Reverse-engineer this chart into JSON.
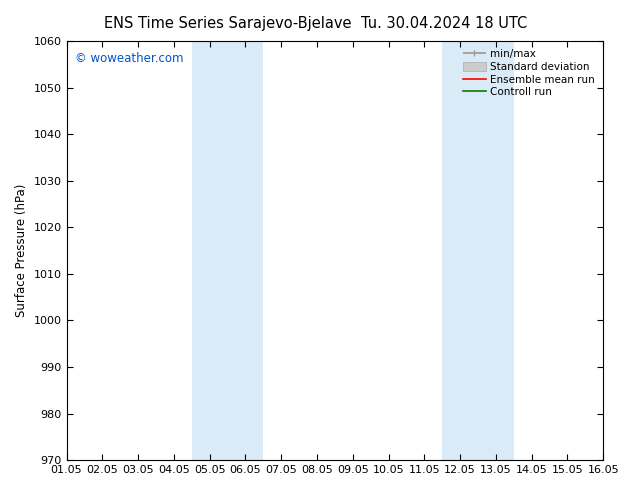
{
  "title": "ENS Time Series Sarajevo-Bjelave",
  "title2": "Tu. 30.04.2024 18 UTC",
  "ylabel": "Surface Pressure (hPa)",
  "ylim": [
    970,
    1060
  ],
  "yticks": [
    970,
    980,
    990,
    1000,
    1010,
    1020,
    1030,
    1040,
    1050,
    1060
  ],
  "xtick_labels": [
    "01.05",
    "02.05",
    "03.05",
    "04.05",
    "05.05",
    "06.05",
    "07.05",
    "08.05",
    "09.05",
    "10.05",
    "11.05",
    "12.05",
    "13.05",
    "14.05",
    "15.05",
    "16.05"
  ],
  "shaded_bands": [
    {
      "xstart": 3.5,
      "xend": 5.5
    },
    {
      "xstart": 10.5,
      "xend": 12.5
    }
  ],
  "shaded_color": "#daeaf7",
  "watermark": "© woweather.com",
  "watermark_color": "#0055cc",
  "background_color": "#ffffff",
  "legend_entries": [
    {
      "label": "min/max",
      "color": "#999999",
      "lw": 1.2
    },
    {
      "label": "Standard deviation",
      "color": "#cccccc",
      "lw": 5
    },
    {
      "label": "Ensemble mean run",
      "color": "#ff0000",
      "lw": 1.2
    },
    {
      "label": "Controll run",
      "color": "#008000",
      "lw": 1.2
    }
  ],
  "title_fontsize": 10.5,
  "axis_fontsize": 8.5,
  "tick_fontsize": 8,
  "legend_fontsize": 7.5,
  "watermark_fontsize": 8.5
}
